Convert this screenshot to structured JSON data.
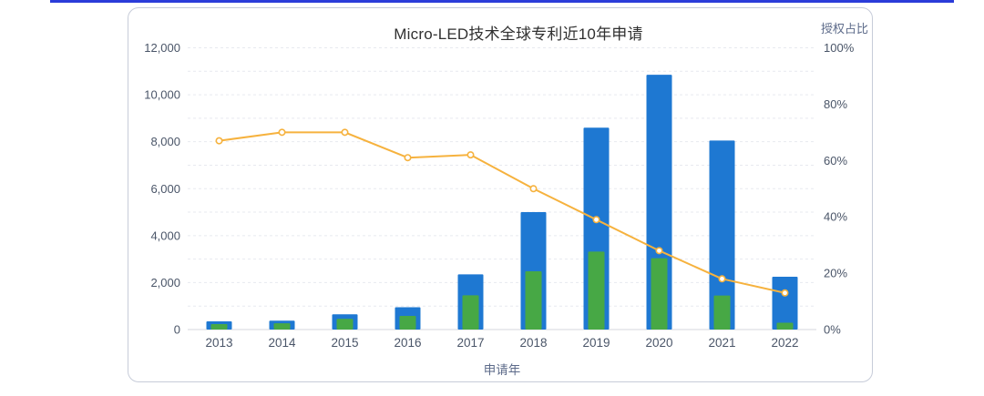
{
  "page": {
    "accent_line_color": "#2b3cd9",
    "card_border_color": "#c7ccd9",
    "background_color": "#ffffff"
  },
  "chart_data": {
    "type": "bar",
    "combo": "bar+line",
    "title": "Micro-LED技术全球专利近10年申请",
    "xlabel": "申请年",
    "right_axis_title": "授权占比",
    "grid": "dashed horizontal, minor step 1000",
    "legend": "none visible",
    "categories": [
      "2013",
      "2014",
      "2015",
      "2016",
      "2017",
      "2018",
      "2019",
      "2020",
      "2021",
      "2022"
    ],
    "series": [
      {
        "id": "applications-bar",
        "type": "bar",
        "color": "#1e78d2",
        "values": [
          350,
          380,
          650,
          950,
          2350,
          5000,
          8600,
          10850,
          8050,
          2250
        ]
      },
      {
        "id": "grants-bar",
        "type": "bar",
        "color": "#47a845",
        "values": [
          235,
          266,
          455,
          580,
          1460,
          2480,
          3320,
          3040,
          1450,
          293
        ]
      },
      {
        "id": "grant-ratio-line",
        "name": "授权占比",
        "type": "line",
        "axis": "right",
        "color": "#f6b23e",
        "values": [
          67,
          70,
          70,
          61,
          62,
          50,
          39,
          28,
          18,
          13
        ]
      }
    ],
    "left_axis": {
      "min": 0,
      "max": 12000,
      "tick_step": 2000,
      "minor_step": 1000,
      "tick_labels": [
        "0",
        "2,000",
        "4,000",
        "6,000",
        "8,000",
        "10,000",
        "12,000"
      ],
      "label_color": "#4a5568"
    },
    "right_axis": {
      "min": 0,
      "max": 100,
      "tick_step": 20,
      "tick_labels": [
        "0%",
        "20%",
        "40%",
        "60%",
        "80%",
        "100%"
      ],
      "label_color": "#4a5568"
    },
    "x_axis": {
      "label_color": "#4a5568",
      "line_color": "#d4d7de"
    }
  }
}
